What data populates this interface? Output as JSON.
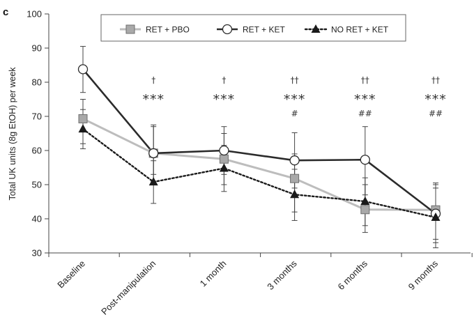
{
  "chart_data": {
    "type": "line",
    "panel_label": "c",
    "ylabel": "Total UK units (8g EtOH) per week",
    "xlabel": "",
    "ylim": [
      30,
      100
    ],
    "yticks": [
      30,
      40,
      50,
      60,
      70,
      80,
      90,
      100
    ],
    "categories": [
      "Baseline",
      "Post-manipulation",
      "1 month",
      "3 months",
      "6 months",
      "9 months"
    ],
    "grid": false,
    "legend_position": "top",
    "series": [
      {
        "name": "RET + PBO",
        "color": "#bdbdbd",
        "marker": "square",
        "line_style": "solid",
        "values": [
          69.3,
          59.2,
          57.5,
          51.8,
          42.7,
          42.6
        ],
        "err_low": [
          62.0,
          51.0,
          50.0,
          42.0,
          36.0,
          34.0
        ],
        "err_high": [
          75.0,
          67.0,
          65.0,
          59.0,
          50.0,
          50.0
        ]
      },
      {
        "name": "RET + KET",
        "color": "#2b2b2b",
        "marker": "circle",
        "line_style": "solid",
        "values": [
          83.8,
          59.2,
          60.0,
          57.1,
          57.3,
          41.5
        ],
        "err_low": [
          77.0,
          53.0,
          53.0,
          49.0,
          47.0,
          33.0
        ],
        "err_high": [
          90.5,
          67.5,
          67.0,
          65.2,
          67.0,
          50.5
        ]
      },
      {
        "name": "NO RET + KET",
        "color": "#1a1a1a",
        "marker": "triangle",
        "line_style": "dotted",
        "values": [
          66.3,
          50.8,
          54.8,
          47.1,
          45.1,
          40.4
        ],
        "err_low": [
          60.5,
          44.5,
          48.0,
          39.5,
          38.0,
          31.5
        ],
        "err_high": [
          72.0,
          57.0,
          61.5,
          54.5,
          52.0,
          49.0
        ]
      }
    ],
    "annotations": [
      {
        "category": "Post-manipulation",
        "lines": [
          "†",
          "***"
        ]
      },
      {
        "category": "1 month",
        "lines": [
          "†",
          "***"
        ]
      },
      {
        "category": "3 months",
        "lines": [
          "††",
          "***",
          "#"
        ]
      },
      {
        "category": "6 months",
        "lines": [
          "††",
          "***",
          "##"
        ]
      },
      {
        "category": "9 months",
        "lines": [
          "††",
          "***",
          "##"
        ]
      }
    ]
  }
}
